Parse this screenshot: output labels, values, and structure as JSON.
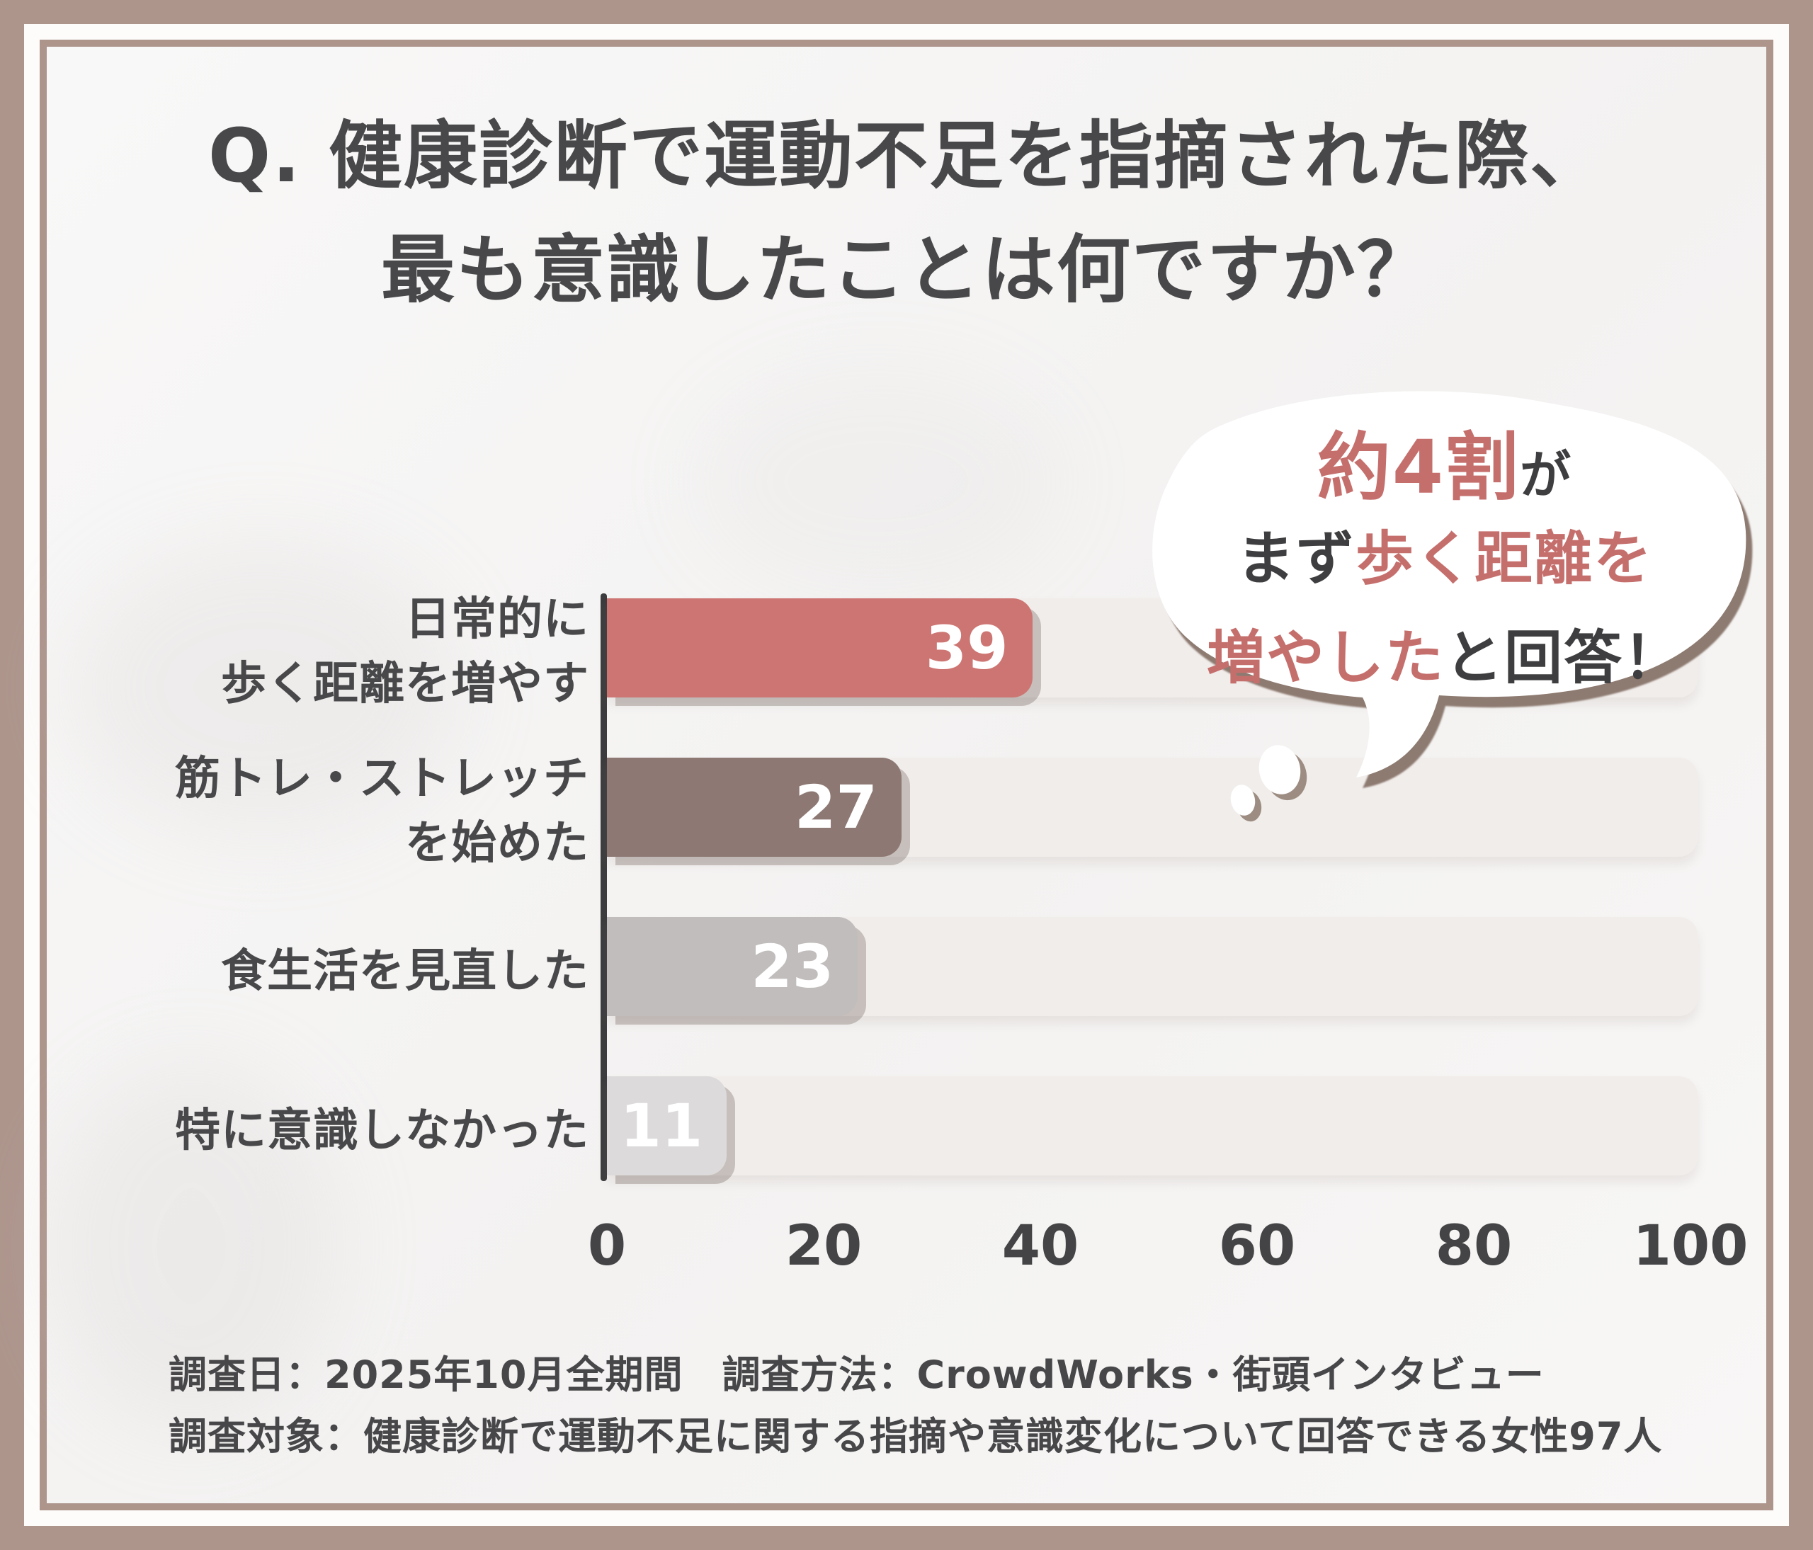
{
  "title": {
    "line1": "Q. 健康診断で運動不足を指摘された際、",
    "line2": "最も意識したことは何ですか？"
  },
  "bubble": {
    "line1_accent": "約4割",
    "line1_rest": "が",
    "line2_prefix": "まず",
    "line2_accent": "歩く距離を",
    "line3_accent": "増やした",
    "line3_rest": "と回答！"
  },
  "chart_data": {
    "type": "bar",
    "orientation": "horizontal",
    "title": "健康診断で運動不足を指摘された際、最も意識したことは何ですか？",
    "categories": [
      "日常的に歩く距離を増やす",
      "筋トレ・ストレッチを始めた",
      "食生活を見直した",
      "特に意識しなかった"
    ],
    "category_lines": [
      [
        "日常的に",
        "歩く距離を増やす"
      ],
      [
        "筋トレ・ストレッチ",
        "を始めた"
      ],
      [
        "食生活を見直した"
      ],
      [
        "特に意識しなかった"
      ]
    ],
    "values": [
      39,
      27,
      23,
      11
    ],
    "bar_colors": [
      "#cd7572",
      "#8d7873",
      "#c1bdbc",
      "#dcdada"
    ],
    "x_ticks": [
      0,
      20,
      40,
      60,
      80,
      100
    ],
    "xlim": [
      0,
      100
    ],
    "grid": false,
    "legend": false
  },
  "footer": {
    "line1": "調査日：2025年10月全期間　調査方法：CrowdWorks・街頭インタビュー",
    "line2": "調査対象：健康診断で運動不足に関する指摘や意識変化について回答できる女性97人"
  },
  "colors": {
    "frame": "#ad958c",
    "content_background": "#f7f6f5",
    "text_dark": "#48484a",
    "accent_rose": "#c56f6d",
    "bar_rose": "#cd7572",
    "bar_brown": "#8d7873",
    "bar_gray": "#c1bdbc",
    "bar_light_gray": "#dcdada",
    "track": "#f1edeb",
    "bubble_shadow": "#8d7a70",
    "value_text": "#ffffff"
  }
}
